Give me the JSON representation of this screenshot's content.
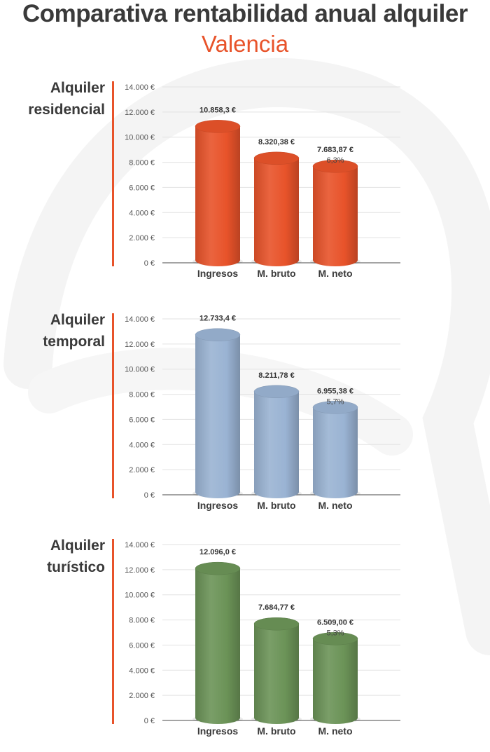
{
  "header": {
    "title": "Comparativa rentabilidad anual alquiler",
    "subtitle": "Valencia"
  },
  "chart_data": [
    {
      "type": "bar",
      "title_lines": [
        "Alquiler",
        "residencial"
      ],
      "categories": [
        "Ingresos",
        "M. bruto",
        "M. neto"
      ],
      "values": [
        10858.3,
        8320.38,
        7683.87
      ],
      "value_labels": [
        "10.858,3 €",
        "8.320,38 €",
        "7.683,87 €"
      ],
      "percent_label": "6,3%",
      "y_ticks": [
        "0 €",
        "2.000 €",
        "4.000 €",
        "6.000 €",
        "8.000 €",
        "10.000 €",
        "12.000 €",
        "14.000 €"
      ],
      "ylim": [
        0,
        14000
      ],
      "color": "#e8532a"
    },
    {
      "type": "bar",
      "title_lines": [
        "Alquiler",
        "temporal"
      ],
      "categories": [
        "Ingresos",
        "M. bruto",
        "M. neto"
      ],
      "values": [
        12733.4,
        8211.78,
        6955.38
      ],
      "value_labels": [
        "12.733,4 €",
        "8.211,78 €",
        "6.955,38 €"
      ],
      "percent_label": "5,7%",
      "y_ticks": [
        "0 €",
        "2.000 €",
        "4.000 €",
        "6.000 €",
        "8.000 €",
        "10.000 €",
        "12.000 €",
        "14.000 €"
      ],
      "ylim": [
        0,
        14000
      ],
      "color": "#9ab3d3"
    },
    {
      "type": "bar",
      "title_lines": [
        "Alquiler",
        "turístico"
      ],
      "categories": [
        "Ingresos",
        "M. bruto",
        "M. neto"
      ],
      "values": [
        12096.0,
        7684.77,
        6509.0
      ],
      "value_labels": [
        "12.096,0 €",
        "7.684,77 €",
        "6.509,00 €"
      ],
      "percent_label": "5,3%",
      "y_ticks": [
        "0 €",
        "2.000 €",
        "4.000 €",
        "6.000 €",
        "8.000 €",
        "10.000 €",
        "12.000 €",
        "14.000 €"
      ],
      "ylim": [
        0,
        14000
      ],
      "color": "#6b9357"
    }
  ]
}
